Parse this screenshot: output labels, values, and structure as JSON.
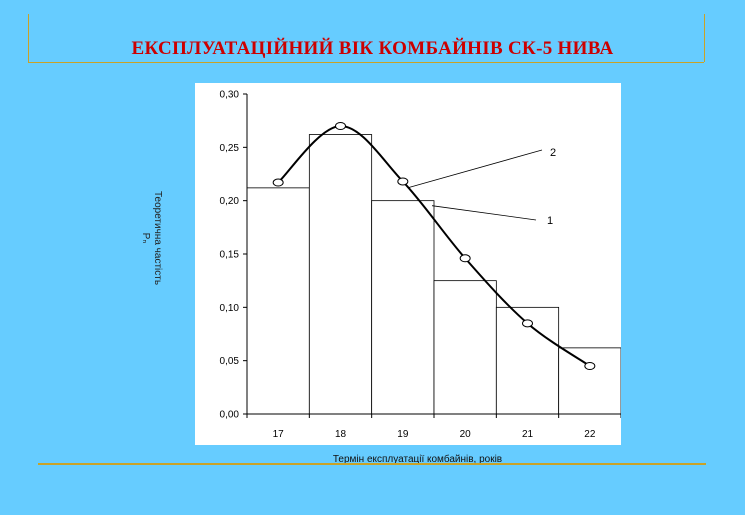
{
  "slide": {
    "title": "ЕКСПЛУАТАЦІЙНИЙ ВІК КОМБАЙНІВ СК-5 НИВА"
  },
  "chart_data": {
    "type": "bar",
    "title": "",
    "xlabel": "Термін експлуатації комбайнів, років",
    "ylabel": "Теоретична частість",
    "ylabel_symbol": "Pₙ",
    "categories": [
      "17",
      "18",
      "19",
      "20",
      "21",
      "22"
    ],
    "series": [
      {
        "style": "histogram",
        "values": [
          0.212,
          0.262,
          0.2,
          0.125,
          0.1,
          0.062
        ]
      },
      {
        "style": "smooth-line-markers",
        "values": [
          0.217,
          0.27,
          0.218,
          0.146,
          0.085,
          0.045
        ]
      }
    ],
    "annotations": [
      "2",
      "1"
    ],
    "ylim": [
      0,
      0.3
    ],
    "yticks": [
      "0,00",
      "0,05",
      "0,10",
      "0,15",
      "0,20",
      "0,25",
      "0,30"
    ],
    "grid": false,
    "legend": "none"
  }
}
